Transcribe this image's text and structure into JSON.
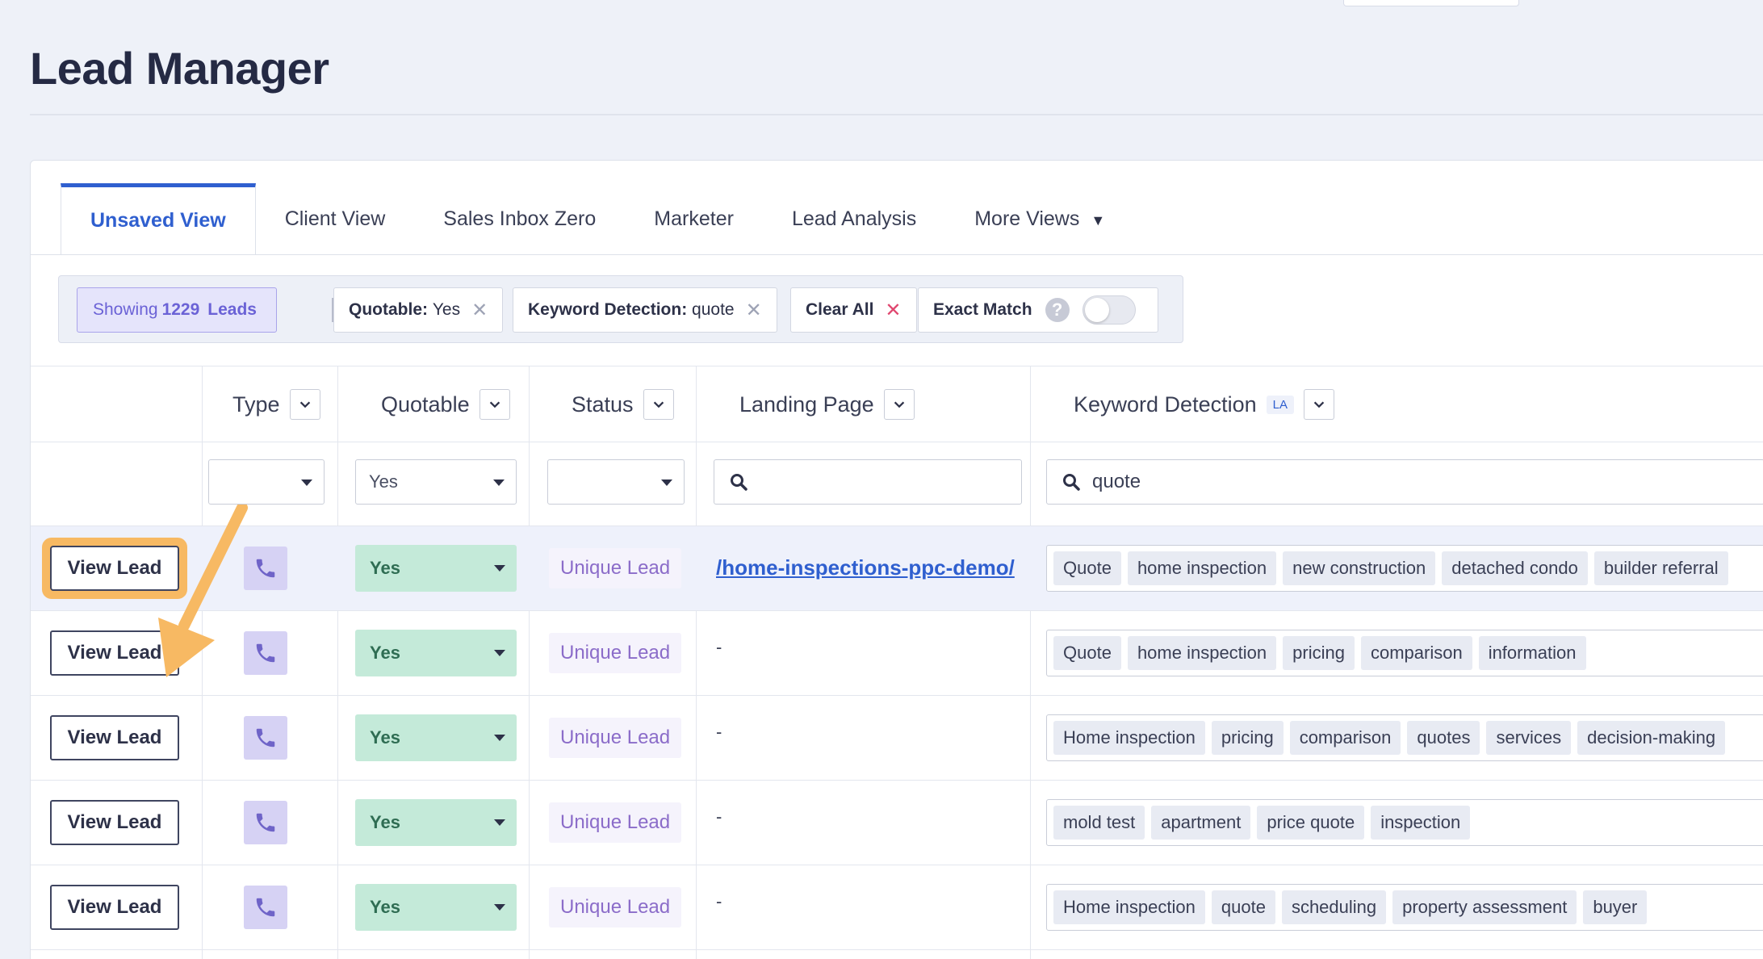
{
  "page": {
    "title": "Lead Manager"
  },
  "tabs": [
    {
      "label": "Unsaved View",
      "active": true
    },
    {
      "label": "Client View"
    },
    {
      "label": "Sales Inbox Zero"
    },
    {
      "label": "Marketer"
    },
    {
      "label": "Lead Analysis"
    },
    {
      "label": "More Views"
    }
  ],
  "filters": {
    "showing_prefix": "Showing",
    "showing_count": "1229",
    "showing_suffix": "Leads",
    "chips": [
      {
        "key": "Quotable:",
        "value": "Yes"
      },
      {
        "key": "Keyword Detection:",
        "value": "quote"
      }
    ],
    "clear_all": "Clear All",
    "exact_match": "Exact Match",
    "help_glyph": "?"
  },
  "columns": {
    "type": "Type",
    "quotable": "Quotable",
    "status": "Status",
    "landing_page": "Landing Page",
    "keyword_detection": "Keyword Detection",
    "keyword_badge": "LA"
  },
  "column_filters": {
    "type": "",
    "quotable": "Yes",
    "status": "",
    "landing_page": "",
    "keyword_detection": "quote"
  },
  "rows": [
    {
      "action": "View Lead",
      "quotable": "Yes",
      "status": "Unique Lead",
      "landing_page": "/home-inspections-ppc-demo/",
      "keywords": [
        "Quote",
        "home inspection",
        "new construction",
        "detached condo",
        "builder referral"
      ]
    },
    {
      "action": "View Lead",
      "quotable": "Yes",
      "status": "Unique Lead",
      "landing_page": "-",
      "keywords": [
        "Quote",
        "home inspection",
        "pricing",
        "comparison",
        "information"
      ]
    },
    {
      "action": "View Lead",
      "quotable": "Yes",
      "status": "Unique Lead",
      "landing_page": "-",
      "keywords": [
        "Home inspection",
        "pricing",
        "comparison",
        "quotes",
        "services",
        "decision-making"
      ]
    },
    {
      "action": "View Lead",
      "quotable": "Yes",
      "status": "Unique Lead",
      "landing_page": "-",
      "keywords": [
        "mold test",
        "apartment",
        "price quote",
        "inspection"
      ]
    },
    {
      "action": "View Lead",
      "quotable": "Yes",
      "status": "Unique Lead",
      "landing_page": "-",
      "keywords": [
        "Home inspection",
        "quote",
        "scheduling",
        "property assessment",
        "buyer"
      ]
    }
  ],
  "colors": {
    "accent": "#2f5fcf",
    "callout": "#f7b963",
    "quotable_bg": "#c4ead9",
    "status_text": "#8b6cc9"
  }
}
